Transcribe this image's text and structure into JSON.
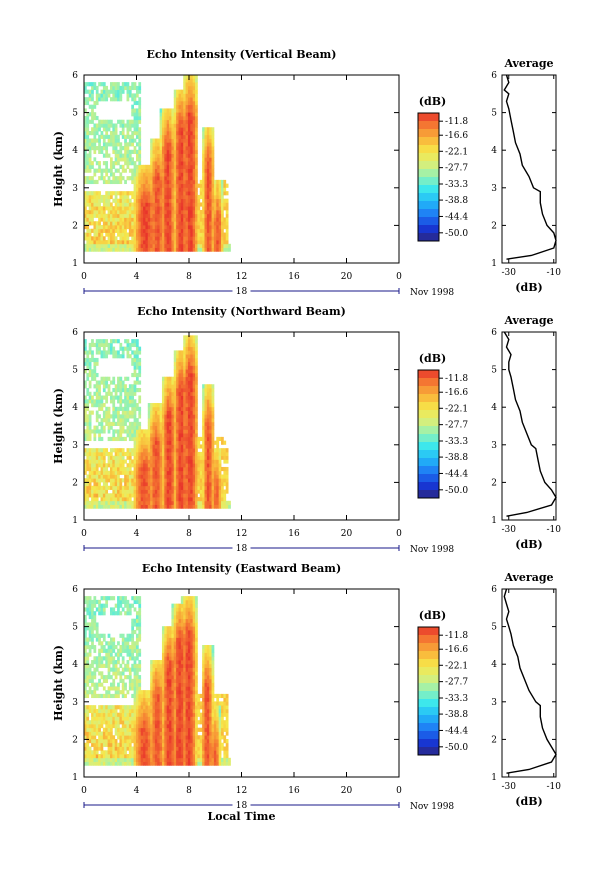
{
  "chart_data": [
    {
      "type": "heatmap",
      "title": "Echo Intensity (Vertical Beam)",
      "ylabel": "Height (km)",
      "xlabel": "",
      "xlim": [
        0,
        24
      ],
      "ylim": [
        1,
        6
      ],
      "xticks": [
        "0",
        "4",
        "8",
        "12",
        "16",
        "20",
        "0"
      ],
      "yticks": [
        "1",
        "2",
        "3",
        "4",
        "5",
        "6"
      ],
      "date_row": [
        "18",
        "Nov 1998"
      ],
      "colorbar": {
        "unit": "(dB)",
        "ticks": [
          "-11.8",
          "-16.6",
          "-22.1",
          "-27.7",
          "-33.3",
          "-38.8",
          "-44.4",
          "-50.0"
        ],
        "range": [
          -52.8,
          -9.0
        ]
      },
      "convective_cells": [
        {
          "center": 4.6,
          "width": 0.85,
          "top": 3.5,
          "peak": -10
        },
        {
          "center": 5.5,
          "width": 0.6,
          "top": 4.2,
          "peak": -11
        },
        {
          "center": 6.3,
          "width": 0.55,
          "top": 5.0,
          "peak": -10
        },
        {
          "center": 7.3,
          "width": 0.55,
          "top": 5.5,
          "peak": -10
        },
        {
          "center": 8.0,
          "width": 0.6,
          "top": 5.9,
          "peak": -10
        },
        {
          "center": 9.4,
          "width": 0.45,
          "top": 4.6,
          "peak": -11
        },
        {
          "center": 10.1,
          "width": 0.4,
          "top": 3.1,
          "peak": -11
        }
      ],
      "data_span_hours": [
        0,
        11
      ],
      "average_profile": {
        "title": "Average",
        "xlabel": "(dB)",
        "xlim": [
          -33,
          -9
        ],
        "xticks": [
          "-30",
          "-10"
        ],
        "ylim": [
          1,
          6
        ],
        "yticks": [
          "1",
          "2",
          "3",
          "4",
          "5",
          "6"
        ],
        "x": [
          -31,
          -20,
          -10,
          -9,
          -10,
          -13,
          -15,
          -16,
          -16,
          -19,
          -21,
          -24,
          -25,
          -27,
          -28,
          -29,
          -30,
          -31,
          -30,
          -32,
          -30,
          -31
        ],
        "y": [
          1.1,
          1.2,
          1.4,
          1.6,
          1.8,
          2.0,
          2.3,
          2.6,
          2.9,
          3.0,
          3.3,
          3.6,
          3.9,
          4.2,
          4.5,
          4.8,
          5.1,
          5.3,
          5.5,
          5.6,
          5.8,
          6.0
        ]
      }
    },
    {
      "type": "heatmap",
      "title": "Echo Intensity (Northward Beam)",
      "ylabel": "Height (km)",
      "xlabel": "",
      "xlim": [
        0,
        24
      ],
      "ylim": [
        1,
        6
      ],
      "xticks": [
        "0",
        "4",
        "8",
        "12",
        "16",
        "20",
        "0"
      ],
      "yticks": [
        "1",
        "2",
        "3",
        "4",
        "5",
        "6"
      ],
      "date_row": [
        "18",
        "Nov 1998"
      ],
      "colorbar": {
        "unit": "(dB)",
        "ticks": [
          "-11.8",
          "-16.6",
          "-22.1",
          "-27.7",
          "-33.3",
          "-38.8",
          "-44.4",
          "-50.0"
        ],
        "range": [
          -52.8,
          -9.0
        ]
      },
      "convective_cells": [
        {
          "center": 4.5,
          "width": 0.85,
          "top": 3.3,
          "peak": -11
        },
        {
          "center": 5.4,
          "width": 0.6,
          "top": 4.0,
          "peak": -11
        },
        {
          "center": 6.4,
          "width": 0.55,
          "top": 4.7,
          "peak": -10
        },
        {
          "center": 7.3,
          "width": 0.55,
          "top": 5.4,
          "peak": -10
        },
        {
          "center": 8.0,
          "width": 0.6,
          "top": 5.8,
          "peak": -10
        },
        {
          "center": 9.4,
          "width": 0.45,
          "top": 4.5,
          "peak": -11
        },
        {
          "center": 10.0,
          "width": 0.4,
          "top": 2.9,
          "peak": -12
        }
      ],
      "data_span_hours": [
        0,
        11
      ],
      "average_profile": {
        "title": "Average",
        "xlabel": "(dB)",
        "xlim": [
          -33,
          -9
        ],
        "xticks": [
          "-30",
          "-10"
        ],
        "ylim": [
          1,
          6
        ],
        "yticks": [
          "1",
          "2",
          "3",
          "4",
          "5",
          "6"
        ],
        "x": [
          -31,
          -22,
          -11,
          -9,
          -11,
          -14,
          -16,
          -17,
          -18,
          -20,
          -22,
          -24,
          -25,
          -27,
          -28,
          -29,
          -30,
          -30,
          -29,
          -31,
          -30,
          -32
        ],
        "y": [
          1.1,
          1.2,
          1.4,
          1.6,
          1.8,
          2.0,
          2.3,
          2.6,
          2.9,
          3.0,
          3.3,
          3.6,
          3.9,
          4.2,
          4.5,
          4.8,
          5.0,
          5.2,
          5.4,
          5.6,
          5.8,
          6.0
        ]
      }
    },
    {
      "type": "heatmap",
      "title": "Echo Intensity (Eastward Beam)",
      "ylabel": "Height (km)",
      "xlabel": "Local Time",
      "xlim": [
        0,
        24
      ],
      "ylim": [
        1,
        6
      ],
      "xticks": [
        "0",
        "4",
        "8",
        "12",
        "16",
        "20",
        "0"
      ],
      "yticks": [
        "1",
        "2",
        "3",
        "4",
        "5",
        "6"
      ],
      "date_row": [
        "18",
        "Nov 1998"
      ],
      "colorbar": {
        "unit": "(dB)",
        "ticks": [
          "-11.8",
          "-16.6",
          "-22.1",
          "-27.7",
          "-33.3",
          "-38.8",
          "-44.4",
          "-50.0"
        ],
        "range": [
          -52.8,
          -9.0
        ]
      },
      "convective_cells": [
        {
          "center": 4.5,
          "width": 0.85,
          "top": 3.2,
          "peak": -11
        },
        {
          "center": 5.5,
          "width": 0.6,
          "top": 4.1,
          "peak": -11
        },
        {
          "center": 6.4,
          "width": 0.55,
          "top": 4.9,
          "peak": -10
        },
        {
          "center": 7.2,
          "width": 0.55,
          "top": 5.5,
          "peak": -10
        },
        {
          "center": 7.9,
          "width": 0.6,
          "top": 5.7,
          "peak": -10
        },
        {
          "center": 9.3,
          "width": 0.45,
          "top": 4.4,
          "peak": -11
        },
        {
          "center": 9.9,
          "width": 0.4,
          "top": 2.8,
          "peak": -12
        }
      ],
      "data_span_hours": [
        0,
        11
      ],
      "average_profile": {
        "title": "Average",
        "xlabel": "(dB)",
        "xlim": [
          -33,
          -9
        ],
        "xticks": [
          "-30",
          "-10"
        ],
        "ylim": [
          1,
          6
        ],
        "yticks": [
          "1",
          "2",
          "3",
          "4",
          "5",
          "6"
        ],
        "x": [
          -31,
          -21,
          -11,
          -9,
          -11,
          -13,
          -15,
          -16,
          -16,
          -18,
          -21,
          -23,
          -25,
          -26,
          -28,
          -29,
          -30,
          -31,
          -30,
          -31,
          -32,
          -31
        ],
        "y": [
          1.1,
          1.2,
          1.4,
          1.6,
          1.8,
          2.0,
          2.3,
          2.6,
          2.9,
          3.0,
          3.3,
          3.6,
          3.9,
          4.2,
          4.5,
          4.8,
          5.0,
          5.2,
          5.4,
          5.6,
          5.8,
          6.0
        ]
      }
    }
  ]
}
